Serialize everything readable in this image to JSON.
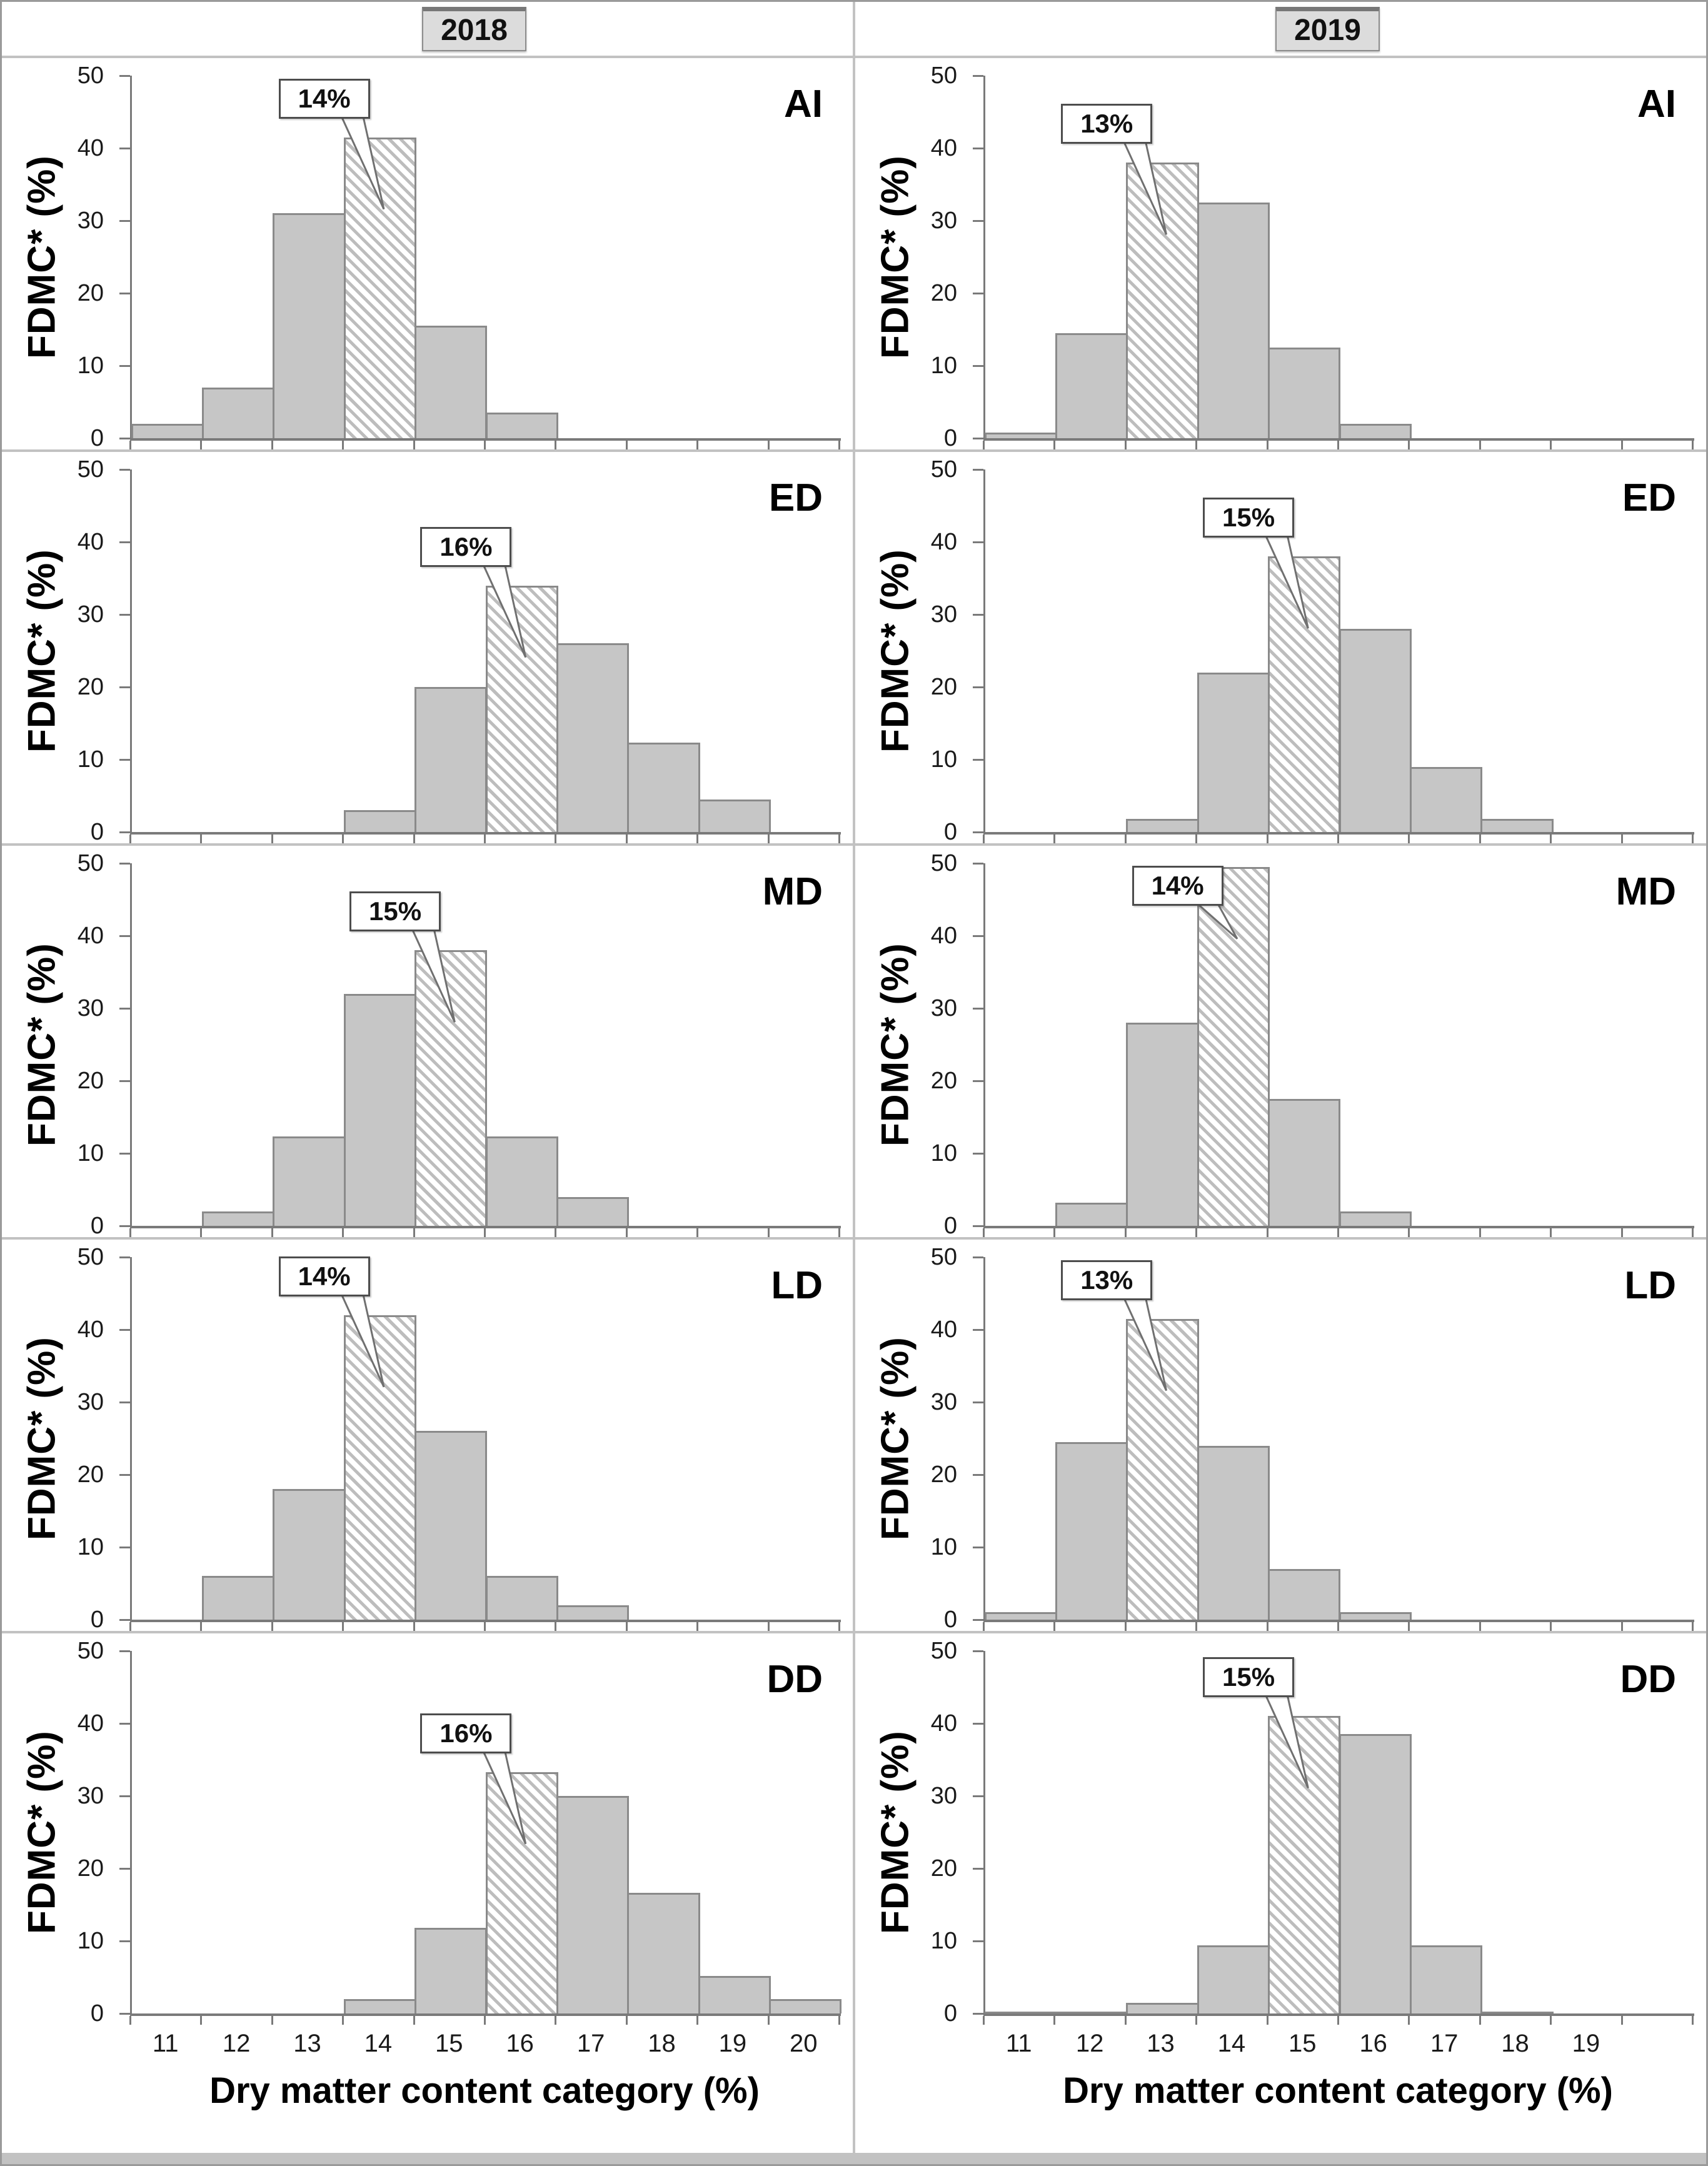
{
  "figure": {
    "years": [
      "2018",
      "2019"
    ],
    "row_labels": [
      "AI",
      "ED",
      "MD",
      "LD",
      "DD"
    ],
    "y_axis": {
      "label": "FDMC* (%)",
      "ticks": [
        "0",
        "10",
        "20",
        "30",
        "40",
        "50"
      ],
      "max": 50
    },
    "x_axis_title": "Dry matter content category (%)",
    "colors": {
      "bar_fill": "#c6c6c6",
      "bar_border": "#8a8a8a",
      "hatch_stripe": "#bdbdbd",
      "axis": "#7a7a7a",
      "callout_border": "#4d4d4d",
      "header_bg": "#dcdcdc",
      "cell_border": "#c2c2c2"
    }
  },
  "chart_data": [
    {
      "type": "bar",
      "panel": "AI",
      "year": "2018",
      "ylabel": "FDMC* (%)",
      "ylim": [
        0,
        50
      ],
      "categories": [
        11,
        12,
        13,
        14,
        15,
        16,
        17,
        18,
        19,
        20
      ],
      "values": [
        2,
        7,
        31,
        41.5,
        15.5,
        3.5,
        0,
        0,
        0,
        0
      ],
      "highlight_category": 14,
      "callout": "14%"
    },
    {
      "type": "bar",
      "panel": "AI",
      "year": "2019",
      "ylabel": "FDMC* (%)",
      "ylim": [
        0,
        50
      ],
      "categories": [
        11,
        12,
        13,
        14,
        15,
        16,
        17,
        18,
        19,
        20
      ],
      "values": [
        0.8,
        14.5,
        38,
        32.5,
        12.5,
        2,
        0,
        0,
        0,
        0
      ],
      "highlight_category": 13,
      "callout": "13%"
    },
    {
      "type": "bar",
      "panel": "ED",
      "year": "2018",
      "ylabel": "FDMC* (%)",
      "ylim": [
        0,
        50
      ],
      "categories": [
        11,
        12,
        13,
        14,
        15,
        16,
        17,
        18,
        19,
        20
      ],
      "values": [
        0,
        0,
        0,
        3,
        20,
        34,
        26,
        12.3,
        4.5,
        0
      ],
      "highlight_category": 16,
      "callout": "16%"
    },
    {
      "type": "bar",
      "panel": "ED",
      "year": "2019",
      "ylabel": "FDMC* (%)",
      "ylim": [
        0,
        50
      ],
      "categories": [
        11,
        12,
        13,
        14,
        15,
        16,
        17,
        18,
        19,
        20
      ],
      "values": [
        0,
        0,
        1.8,
        22,
        38,
        28,
        9,
        1.8,
        0,
        0
      ],
      "highlight_category": 15,
      "callout": "15%"
    },
    {
      "type": "bar",
      "panel": "MD",
      "year": "2018",
      "ylabel": "FDMC* (%)",
      "ylim": [
        0,
        50
      ],
      "categories": [
        11,
        12,
        13,
        14,
        15,
        16,
        17,
        18,
        19,
        20
      ],
      "values": [
        0,
        2,
        12.3,
        32,
        38,
        12.3,
        4,
        0,
        0,
        0
      ],
      "highlight_category": 15,
      "callout": "15%"
    },
    {
      "type": "bar",
      "panel": "MD",
      "year": "2019",
      "ylabel": "FDMC* (%)",
      "ylim": [
        0,
        50
      ],
      "categories": [
        11,
        12,
        13,
        14,
        15,
        16,
        17,
        18,
        19,
        20
      ],
      "values": [
        0,
        3.2,
        28,
        49.5,
        17.5,
        2,
        0,
        0,
        0,
        0
      ],
      "highlight_category": 14,
      "callout": "14%"
    },
    {
      "type": "bar",
      "panel": "LD",
      "year": "2018",
      "ylabel": "FDMC* (%)",
      "ylim": [
        0,
        50
      ],
      "categories": [
        11,
        12,
        13,
        14,
        15,
        16,
        17,
        18,
        19,
        20
      ],
      "values": [
        0,
        6,
        18,
        42,
        26,
        6,
        2,
        0,
        0,
        0
      ],
      "highlight_category": 14,
      "callout": "14%"
    },
    {
      "type": "bar",
      "panel": "LD",
      "year": "2019",
      "ylabel": "FDMC* (%)",
      "ylim": [
        0,
        50
      ],
      "categories": [
        11,
        12,
        13,
        14,
        15,
        16,
        17,
        18,
        19,
        20
      ],
      "values": [
        1,
        24.5,
        41.5,
        24,
        7,
        1,
        0,
        0,
        0,
        0
      ],
      "highlight_category": 13,
      "callout": "13%"
    },
    {
      "type": "bar",
      "panel": "DD",
      "year": "2018",
      "ylabel": "FDMC* (%)",
      "ylim": [
        0,
        50
      ],
      "categories": [
        11,
        12,
        13,
        14,
        15,
        16,
        17,
        18,
        19,
        20
      ],
      "values": [
        0,
        0,
        0,
        2,
        11.8,
        33.3,
        30,
        16.6,
        5.2,
        2
      ],
      "highlight_category": 16,
      "callout": "16%",
      "xlabel": "Dry matter content category (%)",
      "x_tick_labels": [
        "11",
        "12",
        "13",
        "14",
        "15",
        "16",
        "17",
        "18",
        "19",
        "20"
      ]
    },
    {
      "type": "bar",
      "panel": "DD",
      "year": "2019",
      "ylabel": "FDMC* (%)",
      "ylim": [
        0,
        50
      ],
      "categories": [
        11,
        12,
        13,
        14,
        15,
        16,
        17,
        18,
        19,
        20
      ],
      "values": [
        0.3,
        0.3,
        1.5,
        9.4,
        41,
        38.5,
        9.4,
        0.3,
        0,
        0
      ],
      "highlight_category": 15,
      "callout": "15%",
      "xlabel": "Dry matter content category (%)",
      "x_tick_labels": [
        "11",
        "12",
        "13",
        "14",
        "15",
        "16",
        "17",
        "18",
        "19",
        ""
      ]
    }
  ]
}
